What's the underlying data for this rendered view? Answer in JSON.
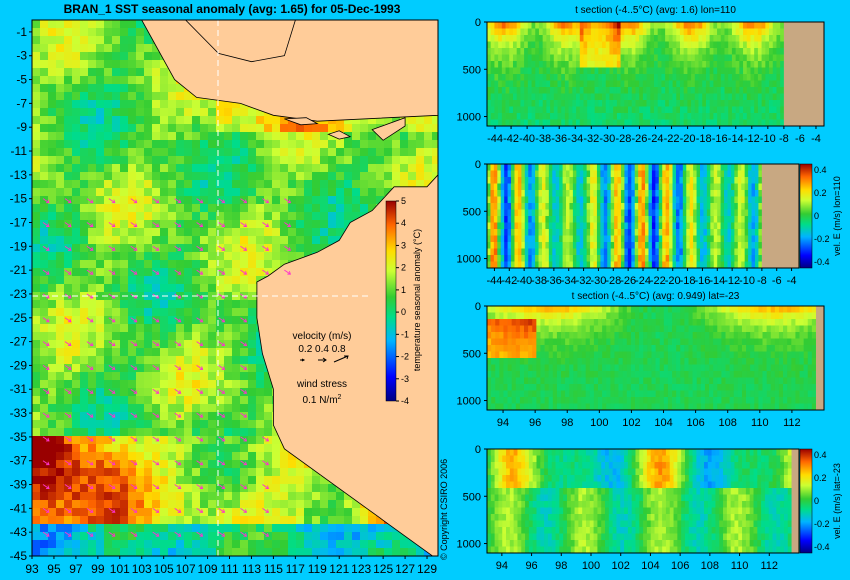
{
  "map": {
    "title": "BRAN_1  SST seasonal anomaly  (avg: 1.65) for 05-Dec-1993",
    "xticks": [
      "93",
      "95",
      "97",
      "99",
      "101",
      "103",
      "105",
      "107",
      "109",
      "111",
      "113",
      "115",
      "117",
      "119",
      "121",
      "123",
      "125",
      "127",
      "129"
    ],
    "yticks": [
      "-1",
      "-3",
      "-5",
      "-7",
      "-9",
      "-11",
      "-13",
      "-15",
      "-17",
      "-19",
      "-21",
      "-23",
      "-25",
      "-27",
      "-29",
      "-31",
      "-33",
      "-35",
      "-37",
      "-39",
      "-41",
      "-43",
      "-45"
    ],
    "section_lon": 110,
    "section_lat": -23,
    "colorbar": {
      "label": "temperature seasonal anomaly (°C)",
      "ticks": [
        "5",
        "4",
        "3",
        "2",
        "1",
        "0",
        "-1",
        "-2",
        "-3",
        "-4"
      ],
      "range": [
        -4,
        5
      ]
    },
    "velocity_legend": {
      "title": "velocity (m/s)",
      "values": "0.2 0.4 0.8"
    },
    "wind_legend": {
      "title": "wind stress",
      "value": "0.1 N/m",
      "sup": "2"
    },
    "copyright": "© Copyright CSIRO 2006"
  },
  "panels": [
    {
      "title": "t section (-4..5°C) (avg: 1.6) lon=110",
      "xticks": [
        "-44",
        "-42",
        "-40",
        "-38",
        "-36",
        "-34",
        "-32",
        "-30",
        "-28",
        "-26",
        "-24",
        "-22",
        "-20",
        "-18",
        "-16",
        "-14",
        "-12",
        "-10",
        "-8",
        "-6",
        "-4"
      ],
      "xrange": [
        -45,
        -3
      ],
      "land_from": -8,
      "yticks": [
        "0",
        "500",
        "1000"
      ],
      "yrange": [
        0,
        1100
      ],
      "kind": "temp",
      "colorbar": null
    },
    {
      "title": "",
      "xticks": [
        "-44",
        "-42",
        "-40",
        "-38",
        "-36",
        "-34",
        "-32",
        "-30",
        "-28",
        "-26",
        "-24",
        "-22",
        "-20",
        "-18",
        "-16",
        "-14",
        "-12",
        "-10",
        "-8",
        "-6",
        "-4"
      ],
      "xrange": [
        -45,
        -3
      ],
      "land_from": -8,
      "yticks": [
        "0",
        "500",
        "1000"
      ],
      "yrange": [
        0,
        1100
      ],
      "kind": "vel",
      "colorbar": {
        "label": "vel. E (m/s) lon=110",
        "ticks": [
          "0.4",
          "0.2",
          "0",
          "-0.2",
          "-0.4"
        ]
      }
    },
    {
      "title": "t section (-4..5°C) (avg: 0.949) lat=-23",
      "xticks": [
        "94",
        "96",
        "98",
        "100",
        "102",
        "104",
        "106",
        "108",
        "110",
        "112"
      ],
      "xrange": [
        93,
        114
      ],
      "land_from": 113.5,
      "yticks": [
        "0",
        "500",
        "1000"
      ],
      "yrange": [
        0,
        1100
      ],
      "kind": "temp2",
      "colorbar": null
    },
    {
      "title": "",
      "xticks": [
        "94",
        "96",
        "98",
        "100",
        "102",
        "104",
        "106",
        "108",
        "110",
        "112"
      ],
      "xrange": [
        93,
        114
      ],
      "land_from": 113.5,
      "yticks": [
        "0",
        "500",
        "1000"
      ],
      "yrange": [
        0,
        1100
      ],
      "kind": "vel2",
      "colorbar": {
        "label": "vel. E (m/s) lat=-23",
        "ticks": [
          "0.4",
          "0.2",
          "0",
          "-0.2",
          "-0.4"
        ]
      }
    }
  ],
  "colors": {
    "background": "#00ccff",
    "land": "#ffcc99",
    "section_land": "#c8a882",
    "vectors": "#ff33cc"
  },
  "chart_data": [
    {
      "type": "heatmap",
      "title": "BRAN_1  SST seasonal anomaly  (avg: 1.65) for 05-Dec-1993",
      "xlim": [
        93,
        130
      ],
      "ylim": [
        -45,
        0
      ],
      "value_range": [
        -4,
        5
      ],
      "average": 1.65
    },
    {
      "type": "heatmap",
      "title": "t section (-4..5°C) (avg: 1.6) lon=110",
      "xlim": [
        -45,
        -3
      ],
      "ylim": [
        0,
        1100
      ],
      "average": 1.6
    },
    {
      "type": "heatmap",
      "title": "",
      "xlim": [
        -45,
        -3
      ],
      "ylim": [
        0,
        1100
      ],
      "value_range": [
        -0.4,
        0.4
      ]
    },
    {
      "type": "heatmap",
      "title": "t section (-4..5°C) (avg: 0.949) lat=-23",
      "xlim": [
        93,
        114
      ],
      "ylim": [
        0,
        1100
      ],
      "average": 0.949
    },
    {
      "type": "heatmap",
      "title": "",
      "xlim": [
        93,
        114
      ],
      "ylim": [
        0,
        1100
      ],
      "value_range": [
        -0.4,
        0.4
      ]
    }
  ]
}
